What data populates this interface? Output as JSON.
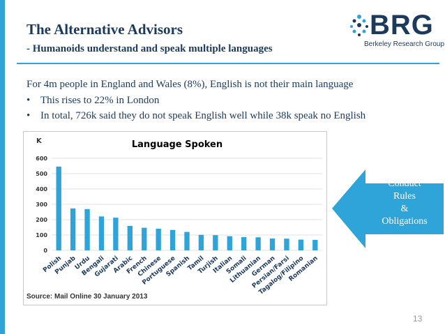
{
  "slide": {
    "title": "The Alternative Advisors",
    "subtitle": "- Humanoids understand and speak multiple languages",
    "intro": "For 4m people in England and Wales (8%), English is not their main language",
    "bullets": [
      "This rises to 22% in London",
      "In total, 726k said they do not speak English well while 38k speak no English"
    ],
    "bullet_glyph": "•",
    "callout_lines": [
      "Conduct",
      "Rules",
      "&",
      "Obligations"
    ],
    "page_number": "13",
    "source": "Source: Mail Online 30 January 2013"
  },
  "logo": {
    "brand": "BRG",
    "tagline": "Berkeley Research Group"
  },
  "colors": {
    "accent": "#2fa4d8",
    "text": "#1b3a5c",
    "bar": "#2fa4d8",
    "callout": "#2fa4d8"
  },
  "chart_data": {
    "type": "bar",
    "title": "Language Spoken",
    "ylabel": "K",
    "xlabel": "",
    "ylim": [
      0,
      600
    ],
    "yticks": [
      0,
      100,
      200,
      300,
      400,
      500,
      600
    ],
    "grid": true,
    "categories": [
      "Polish",
      "Punjab",
      "Urdu",
      "Bengali",
      "Gujarati",
      "Arabic",
      "French",
      "Chinese",
      "Portuguese",
      "Spanish",
      "Tamil",
      "Turjish",
      "Italian",
      "Somali",
      "Lithuanian",
      "German",
      "Persian/Farsi",
      "Tagalog/Filipino",
      "Romanian"
    ],
    "values": [
      546,
      273,
      269,
      221,
      213,
      159,
      147,
      141,
      133,
      120,
      101,
      99,
      92,
      86,
      85,
      77,
      76,
      70,
      68
    ]
  }
}
